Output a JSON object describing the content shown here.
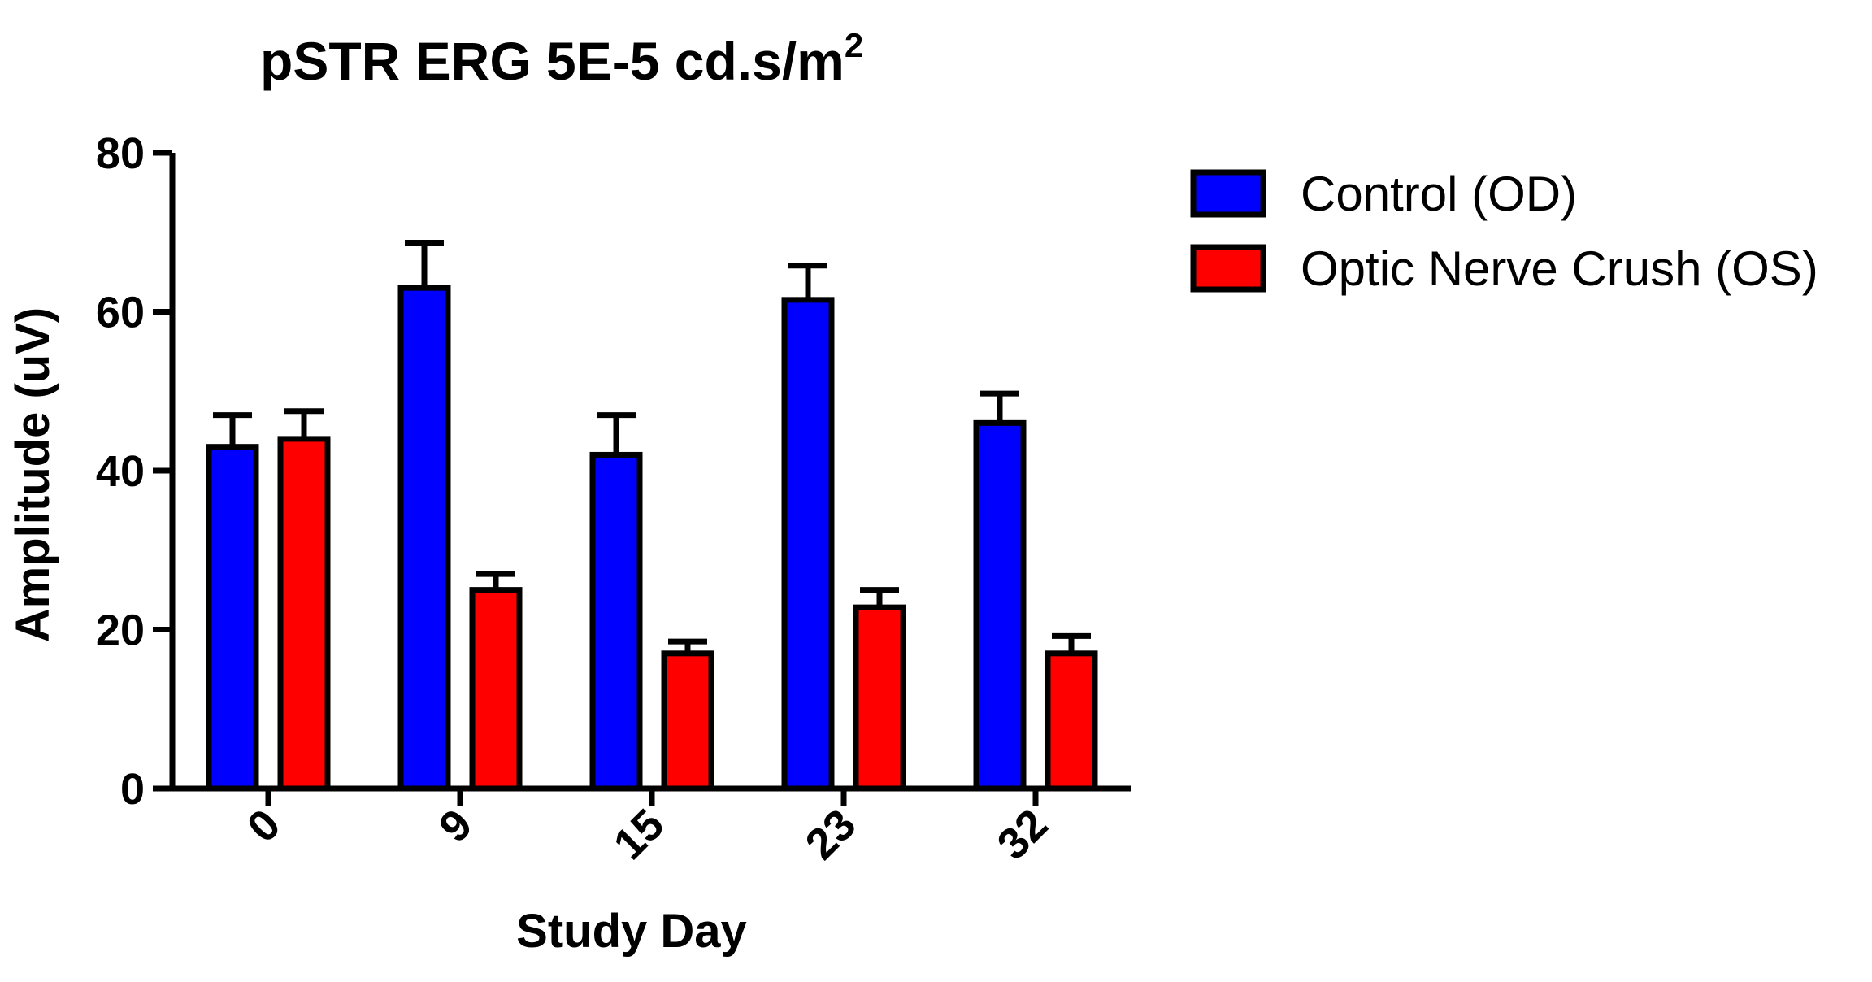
{
  "chart_data": {
    "type": "bar",
    "title": "pSTR ERG 5E-5 cd.s/m",
    "title_superscript": "2",
    "xlabel": "Study Day",
    "ylabel": "Amplitude (uV)",
    "ylim": [
      0,
      80
    ],
    "yticks": [
      0,
      20,
      40,
      60,
      80
    ],
    "categories": [
      "0",
      "9",
      "15",
      "23",
      "32"
    ],
    "series": [
      {
        "name": "Control (OD)",
        "color": "#0000ff",
        "values": [
          43,
          63,
          42,
          61.5,
          46
        ],
        "errors": [
          4,
          5.7,
          5,
          4.3,
          3.7
        ]
      },
      {
        "name": "Optic Nerve Crush (OS)",
        "color": "#ff0000",
        "values": [
          44,
          25,
          17,
          22.8,
          17
        ],
        "errors": [
          3.5,
          2,
          1.5,
          2.2,
          2.2
        ]
      }
    ],
    "grid": false,
    "legend_position": "right"
  }
}
